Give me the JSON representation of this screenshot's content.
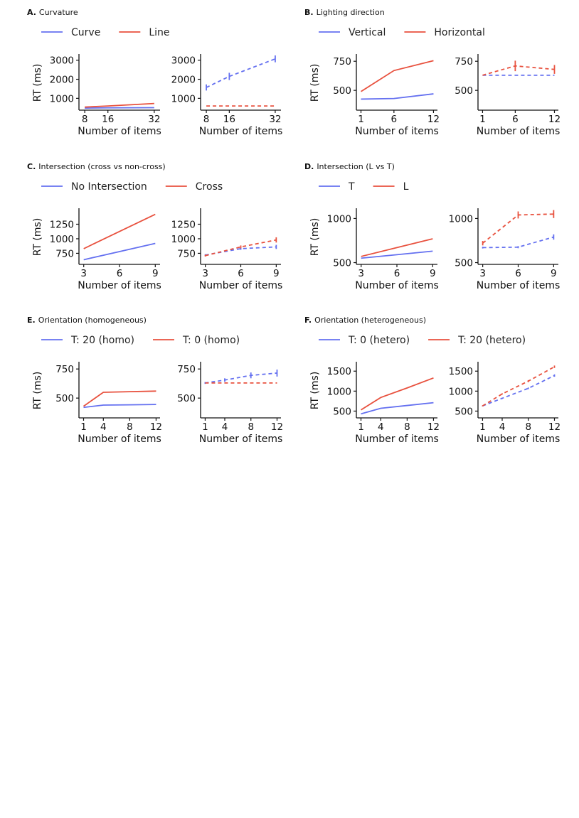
{
  "colors": {
    "series1": "#6470f0",
    "series2": "#e8513e",
    "axis": "#111111"
  },
  "chart_data": [
    {
      "id": "A",
      "letter": "A.",
      "title": "Curvature",
      "type": "line",
      "x": [
        8,
        16,
        32
      ],
      "xticks": [
        "8",
        "16",
        "32"
      ],
      "xlim": [
        6,
        34
      ],
      "ylim": [
        380,
        3250
      ],
      "yticks": [
        1000,
        2000,
        3000
      ],
      "ylabel": "RT (ms)",
      "xlabel": "Number of items",
      "legend": [
        "Curve",
        "Line"
      ],
      "left": {
        "series": [
          {
            "name": "Curve",
            "values": [
              490,
              500,
              510
            ]
          },
          {
            "name": "Line",
            "values": [
              540,
              600,
              730
            ]
          }
        ]
      },
      "right": {
        "series": [
          {
            "name": "Curve",
            "values": [
              1570,
              2150,
              3070
            ],
            "err": [
              160,
              190,
              180
            ]
          },
          {
            "name": "Line",
            "values": [
              600,
              600,
              600
            ]
          }
        ]
      }
    },
    {
      "id": "B",
      "letter": "B.",
      "title": "Lighting direction",
      "type": "line",
      "x": [
        1,
        6,
        12
      ],
      "xticks": [
        "1",
        "6",
        "12"
      ],
      "xlim": [
        0.3,
        12.6
      ],
      "ylim": [
        330,
        800
      ],
      "yticks": [
        500,
        750
      ],
      "ylabel": "RT (ms)",
      "xlabel": "Number of items",
      "legend": [
        "Vertical",
        "Horizontal"
      ],
      "left": {
        "series": [
          {
            "name": "Vertical",
            "values": [
              425,
              430,
              470
            ]
          },
          {
            "name": "Horizontal",
            "values": [
              490,
              670,
              755
            ]
          }
        ]
      },
      "right": {
        "series": [
          {
            "name": "Vertical",
            "values": [
              630,
              630,
              630
            ]
          },
          {
            "name": "Horizontal",
            "values": [
              630,
              710,
              680
            ],
            "err": [
              0,
              45,
              38
            ]
          }
        ]
      }
    },
    {
      "id": "C",
      "letter": "C.",
      "title": "Intersection (cross vs non-cross)",
      "type": "line",
      "x": [
        3,
        6,
        9
      ],
      "xticks": [
        "3",
        "6",
        "9"
      ],
      "xlim": [
        2.6,
        9.4
      ],
      "ylim": [
        560,
        1500
      ],
      "yticks": [
        750,
        1000,
        1250
      ],
      "ylabel": "RT (ms)",
      "xlabel": "Number of items",
      "legend": [
        "No Intersection",
        "Cross"
      ],
      "left": {
        "series": [
          {
            "name": "No Intersection",
            "values": [
              640,
              780,
              920
            ]
          },
          {
            "name": "Cross",
            "values": [
              830,
              1125,
              1420
            ]
          }
        ]
      },
      "right": {
        "series": [
          {
            "name": "No Intersection",
            "values": [
              720,
              830,
              860
            ],
            "err": [
              15,
              20,
              35
            ]
          },
          {
            "name": "Cross",
            "values": [
              710,
              860,
              980
            ],
            "err": [
              15,
              25,
              45
            ]
          }
        ]
      }
    },
    {
      "id": "D",
      "letter": "D.",
      "title": "Intersection (L vs T)",
      "type": "line",
      "x": [
        3,
        6,
        9
      ],
      "xticks": [
        "3",
        "6",
        "9"
      ],
      "xlim": [
        2.6,
        9.4
      ],
      "ylim": [
        480,
        1100
      ],
      "yticks": [
        500,
        1000
      ],
      "ylabel": "RT (ms)",
      "xlabel": "Number of items",
      "legend": [
        "T",
        "L"
      ],
      "left": {
        "series": [
          {
            "name": "T",
            "values": [
              550,
              590,
              630
            ]
          },
          {
            "name": "L",
            "values": [
              570,
              670,
              770
            ]
          }
        ]
      },
      "right": {
        "series": [
          {
            "name": "T",
            "values": [
              670,
              675,
              790
            ],
            "err": [
              10,
              12,
              30
            ]
          },
          {
            "name": "L",
            "values": [
              720,
              1040,
              1050
            ],
            "err": [
              25,
              40,
              45
            ]
          }
        ]
      }
    },
    {
      "id": "E",
      "letter": "E.",
      "title": "Orientation (homogeneous)",
      "type": "line",
      "x": [
        1,
        4,
        8,
        12
      ],
      "xticks": [
        "1",
        "4",
        "8",
        "12"
      ],
      "xlim": [
        0.3,
        12.6
      ],
      "ylim": [
        330,
        800
      ],
      "yticks": [
        500,
        750
      ],
      "ylabel": "RT (ms)",
      "xlabel": "Number of items",
      "legend": [
        "T: 20 (homo)",
        "T: 0 (homo)"
      ],
      "left": {
        "series": [
          {
            "name": "T: 20 (homo)",
            "values": [
              420,
              440,
              442,
              445
            ]
          },
          {
            "name": "T: 0 (homo)",
            "values": [
              430,
              550,
              555,
              560
            ]
          }
        ]
      },
      "right": {
        "series": [
          {
            "name": "T: 20 (homo)",
            "values": [
              630,
              655,
              695,
              715
            ],
            "err": [
              8,
              15,
              25,
              30
            ]
          },
          {
            "name": "T: 0 (homo)",
            "values": [
              630,
              630,
              630,
              630
            ]
          }
        ]
      }
    },
    {
      "id": "F",
      "letter": "F.",
      "title": "Orientation (heterogeneous)",
      "type": "line",
      "x": [
        1,
        4,
        8,
        12
      ],
      "xticks": [
        "1",
        "4",
        "8",
        "12"
      ],
      "xlim": [
        0.3,
        12.6
      ],
      "ylim": [
        330,
        1700
      ],
      "yticks": [
        500,
        1000,
        1500
      ],
      "ylabel": "RT (ms)",
      "xlabel": "Number of items",
      "legend": [
        "T: 0 (hetero)",
        "T: 20 (hetero)"
      ],
      "left": {
        "series": [
          {
            "name": "T: 0 (hetero)",
            "values": [
              430,
              570,
              640,
              710
            ]
          },
          {
            "name": "T: 20 (hetero)",
            "values": [
              530,
              840,
              1080,
              1330
            ]
          }
        ]
      },
      "right": {
        "series": [
          {
            "name": "T: 0 (hetero)",
            "values": [
              630,
              820,
              1070,
              1390
            ],
            "err": [
              10,
              15,
              20,
              30
            ]
          },
          {
            "name": "T: 20 (hetero)",
            "values": [
              630,
              930,
              1250,
              1610
            ],
            "err": [
              10,
              15,
              25,
              30
            ]
          }
        ]
      }
    }
  ]
}
